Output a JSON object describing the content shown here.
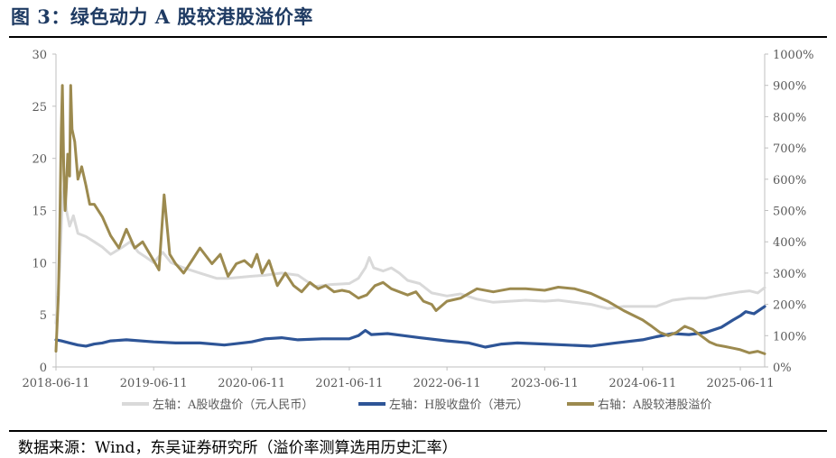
{
  "header": {
    "title": "图 3：绿色动力 A 股较港股溢价率"
  },
  "footer": {
    "source": "数据来源：Wind，东吴证券研究所（溢价率测算选用历史汇率）"
  },
  "chart_data": {
    "type": "line",
    "xlabel": "",
    "ylabel": "",
    "x_ticks": [
      "2018-06-11",
      "2019-06-11",
      "2020-06-11",
      "2021-06-11",
      "2022-06-11",
      "2023-06-11",
      "2024-06-11",
      "2025-06-11"
    ],
    "x_range": [
      "2018-06-11",
      "2025-09-10"
    ],
    "y_left": {
      "ticks": [
        "0",
        "5",
        "10",
        "15",
        "20",
        "25",
        "30"
      ],
      "ylim": [
        0,
        30
      ]
    },
    "y_right": {
      "ticks": [
        "0%",
        "100%",
        "200%",
        "300%",
        "400%",
        "500%",
        "600%",
        "700%",
        "800%",
        "900%",
        "1000%"
      ],
      "ylim": [
        0,
        1000
      ]
    },
    "legend_position": "bottom",
    "grid": false,
    "series": [
      {
        "name": "左轴：A股收盘价（元人民币）",
        "axis": "left",
        "color": "#d9d9d9",
        "points": [
          [
            "2018-06-11",
            4.2
          ],
          [
            "2018-06-25",
            9.5
          ],
          [
            "2018-07-05",
            16.0
          ],
          [
            "2018-07-12",
            17.5
          ],
          [
            "2018-07-20",
            15.0
          ],
          [
            "2018-08-01",
            13.5
          ],
          [
            "2018-08-15",
            14.5
          ],
          [
            "2018-09-01",
            12.8
          ],
          [
            "2018-10-01",
            12.5
          ],
          [
            "2018-11-01",
            12.0
          ],
          [
            "2018-12-01",
            11.5
          ],
          [
            "2019-01-01",
            10.8
          ],
          [
            "2019-02-15",
            11.5
          ],
          [
            "2019-03-15",
            12.0
          ],
          [
            "2019-04-15",
            11.0
          ],
          [
            "2019-05-15",
            10.5
          ],
          [
            "2019-06-11",
            10.0
          ],
          [
            "2019-07-15",
            11.0
          ],
          [
            "2019-08-15",
            10.0
          ],
          [
            "2019-10-01",
            9.5
          ],
          [
            "2019-12-01",
            9.0
          ],
          [
            "2020-02-01",
            8.5
          ],
          [
            "2020-03-15",
            8.5
          ],
          [
            "2020-05-01",
            8.6
          ],
          [
            "2020-06-11",
            8.7
          ],
          [
            "2020-08-01",
            8.8
          ],
          [
            "2020-10-01",
            9.0
          ],
          [
            "2020-12-01",
            8.8
          ],
          [
            "2021-02-01",
            7.7
          ],
          [
            "2021-03-01",
            7.8
          ],
          [
            "2021-04-01",
            7.9
          ],
          [
            "2021-06-11",
            8.0
          ],
          [
            "2021-07-15",
            8.5
          ],
          [
            "2021-08-10",
            9.5
          ],
          [
            "2021-08-25",
            10.5
          ],
          [
            "2021-09-10",
            9.5
          ],
          [
            "2021-10-15",
            9.2
          ],
          [
            "2021-11-15",
            9.5
          ],
          [
            "2021-12-15",
            9.0
          ],
          [
            "2022-01-15",
            8.3
          ],
          [
            "2022-03-01",
            8.0
          ],
          [
            "2022-04-15",
            7.1
          ],
          [
            "2022-06-11",
            6.8
          ],
          [
            "2022-08-01",
            7.0
          ],
          [
            "2022-10-01",
            6.5
          ],
          [
            "2022-12-01",
            6.2
          ],
          [
            "2023-02-01",
            6.3
          ],
          [
            "2023-04-01",
            6.4
          ],
          [
            "2023-06-11",
            6.3
          ],
          [
            "2023-08-01",
            6.4
          ],
          [
            "2023-10-01",
            6.2
          ],
          [
            "2023-12-01",
            6.0
          ],
          [
            "2024-02-01",
            5.6
          ],
          [
            "2024-04-01",
            5.8
          ],
          [
            "2024-06-11",
            5.8
          ],
          [
            "2024-08-01",
            5.8
          ],
          [
            "2024-10-01",
            6.4
          ],
          [
            "2024-12-01",
            6.6
          ],
          [
            "2025-02-01",
            6.6
          ],
          [
            "2025-04-01",
            6.9
          ],
          [
            "2025-06-11",
            7.2
          ],
          [
            "2025-07-15",
            7.3
          ],
          [
            "2025-08-15",
            7.1
          ],
          [
            "2025-09-10",
            7.6
          ]
        ]
      },
      {
        "name": "左轴：H股收盘价（港元）",
        "axis": "left",
        "color": "#2e5597",
        "points": [
          [
            "2018-06-11",
            2.6
          ],
          [
            "2018-07-01",
            2.5
          ],
          [
            "2018-08-01",
            2.3
          ],
          [
            "2018-09-01",
            2.1
          ],
          [
            "2018-10-01",
            2.0
          ],
          [
            "2018-11-01",
            2.2
          ],
          [
            "2018-12-01",
            2.3
          ],
          [
            "2019-01-01",
            2.5
          ],
          [
            "2019-03-01",
            2.6
          ],
          [
            "2019-06-11",
            2.4
          ],
          [
            "2019-09-01",
            2.3
          ],
          [
            "2019-12-01",
            2.3
          ],
          [
            "2020-03-01",
            2.1
          ],
          [
            "2020-06-11",
            2.4
          ],
          [
            "2020-08-01",
            2.7
          ],
          [
            "2020-10-01",
            2.8
          ],
          [
            "2020-12-01",
            2.6
          ],
          [
            "2021-03-01",
            2.7
          ],
          [
            "2021-06-11",
            2.7
          ],
          [
            "2021-07-15",
            3.0
          ],
          [
            "2021-08-10",
            3.5
          ],
          [
            "2021-09-01",
            3.1
          ],
          [
            "2021-11-01",
            3.2
          ],
          [
            "2022-01-01",
            3.0
          ],
          [
            "2022-03-01",
            2.8
          ],
          [
            "2022-06-11",
            2.5
          ],
          [
            "2022-09-01",
            2.3
          ],
          [
            "2022-11-01",
            1.9
          ],
          [
            "2023-01-01",
            2.2
          ],
          [
            "2023-03-01",
            2.3
          ],
          [
            "2023-06-11",
            2.2
          ],
          [
            "2023-09-01",
            2.1
          ],
          [
            "2023-12-01",
            2.0
          ],
          [
            "2024-03-01",
            2.3
          ],
          [
            "2024-06-11",
            2.6
          ],
          [
            "2024-08-01",
            2.9
          ],
          [
            "2024-10-01",
            3.2
          ],
          [
            "2024-12-01",
            3.1
          ],
          [
            "2025-02-01",
            3.3
          ],
          [
            "2025-04-01",
            3.8
          ],
          [
            "2025-05-15",
            4.5
          ],
          [
            "2025-06-11",
            4.9
          ],
          [
            "2025-07-01",
            5.3
          ],
          [
            "2025-08-01",
            5.1
          ],
          [
            "2025-09-10",
            5.8
          ]
        ]
      },
      {
        "name": "右轴：A股较港股溢价",
        "axis": "right",
        "color": "#9c8a4f",
        "points": [
          [
            "2018-06-11",
            50
          ],
          [
            "2018-06-20",
            230
          ],
          [
            "2018-06-25",
            450
          ],
          [
            "2018-07-01",
            760
          ],
          [
            "2018-07-05",
            900
          ],
          [
            "2018-07-10",
            640
          ],
          [
            "2018-07-15",
            500
          ],
          [
            "2018-07-20",
            580
          ],
          [
            "2018-07-25",
            680
          ],
          [
            "2018-08-01",
            610
          ],
          [
            "2018-08-05",
            900
          ],
          [
            "2018-08-10",
            760
          ],
          [
            "2018-08-20",
            720
          ],
          [
            "2018-09-01",
            600
          ],
          [
            "2018-09-15",
            640
          ],
          [
            "2018-10-01",
            580
          ],
          [
            "2018-10-15",
            520
          ],
          [
            "2018-11-01",
            520
          ],
          [
            "2018-12-01",
            480
          ],
          [
            "2019-01-01",
            420
          ],
          [
            "2019-02-01",
            380
          ],
          [
            "2019-03-01",
            440
          ],
          [
            "2019-04-01",
            380
          ],
          [
            "2019-05-01",
            400
          ],
          [
            "2019-06-11",
            340
          ],
          [
            "2019-07-01",
            310
          ],
          [
            "2019-07-20",
            550
          ],
          [
            "2019-08-10",
            360
          ],
          [
            "2019-09-01",
            330
          ],
          [
            "2019-10-01",
            300
          ],
          [
            "2019-11-01",
            340
          ],
          [
            "2019-12-01",
            380
          ],
          [
            "2020-01-15",
            330
          ],
          [
            "2020-02-15",
            360
          ],
          [
            "2020-03-15",
            290
          ],
          [
            "2020-04-15",
            330
          ],
          [
            "2020-05-15",
            340
          ],
          [
            "2020-06-11",
            320
          ],
          [
            "2020-07-01",
            360
          ],
          [
            "2020-07-20",
            300
          ],
          [
            "2020-08-15",
            340
          ],
          [
            "2020-09-15",
            260
          ],
          [
            "2020-10-15",
            300
          ],
          [
            "2020-11-15",
            260
          ],
          [
            "2020-12-15",
            240
          ],
          [
            "2021-01-15",
            270
          ],
          [
            "2021-02-15",
            250
          ],
          [
            "2021-03-15",
            260
          ],
          [
            "2021-04-15",
            240
          ],
          [
            "2021-05-15",
            245
          ],
          [
            "2021-06-11",
            240
          ],
          [
            "2021-07-15",
            220
          ],
          [
            "2021-08-15",
            230
          ],
          [
            "2021-09-15",
            260
          ],
          [
            "2021-10-15",
            270
          ],
          [
            "2021-11-15",
            250
          ],
          [
            "2021-12-15",
            240
          ],
          [
            "2022-01-15",
            230
          ],
          [
            "2022-02-15",
            240
          ],
          [
            "2022-03-15",
            210
          ],
          [
            "2022-04-15",
            200
          ],
          [
            "2022-05-01",
            180
          ],
          [
            "2022-06-11",
            210
          ],
          [
            "2022-08-01",
            220
          ],
          [
            "2022-10-01",
            250
          ],
          [
            "2022-12-01",
            240
          ],
          [
            "2023-02-01",
            250
          ],
          [
            "2023-04-01",
            250
          ],
          [
            "2023-06-11",
            245
          ],
          [
            "2023-08-01",
            255
          ],
          [
            "2023-10-01",
            250
          ],
          [
            "2023-12-01",
            235
          ],
          [
            "2024-02-01",
            210
          ],
          [
            "2024-04-01",
            180
          ],
          [
            "2024-06-11",
            150
          ],
          [
            "2024-07-15",
            130
          ],
          [
            "2024-08-15",
            110
          ],
          [
            "2024-09-15",
            100
          ],
          [
            "2024-10-15",
            110
          ],
          [
            "2024-11-15",
            130
          ],
          [
            "2024-12-15",
            120
          ],
          [
            "2025-01-15",
            100
          ],
          [
            "2025-02-15",
            80
          ],
          [
            "2025-03-15",
            70
          ],
          [
            "2025-04-15",
            65
          ],
          [
            "2025-05-15",
            60
          ],
          [
            "2025-06-11",
            55
          ],
          [
            "2025-07-15",
            45
          ],
          [
            "2025-08-15",
            50
          ],
          [
            "2025-09-10",
            42
          ]
        ]
      }
    ]
  }
}
